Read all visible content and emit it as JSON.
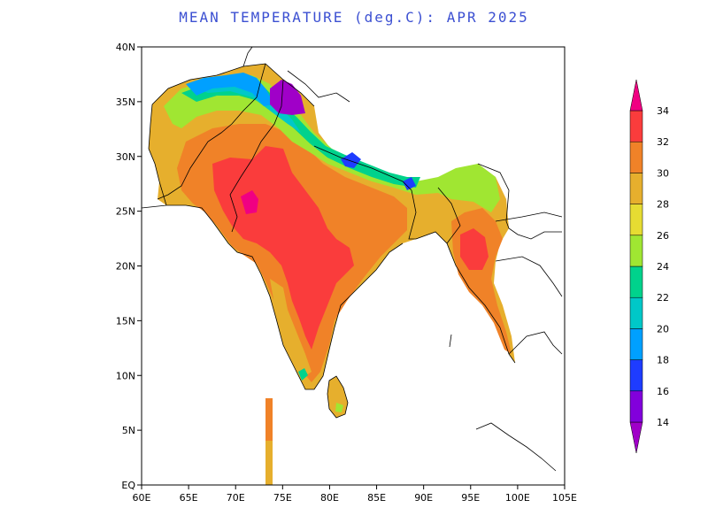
{
  "title": "MEAN TEMPERATURE (deg.C): APR 2025",
  "map": {
    "x_ticks": [
      "60E",
      "65E",
      "70E",
      "75E",
      "80E",
      "85E",
      "90E",
      "95E",
      "100E",
      "105E"
    ],
    "y_ticks": [
      "EQ",
      "5N",
      "10N",
      "15N",
      "20N",
      "25N",
      "30N",
      "35N",
      "40N"
    ],
    "lon_range": [
      60,
      105
    ],
    "lat_range": [
      0,
      40
    ]
  },
  "colorbar": {
    "labels": [
      "14",
      "16",
      "18",
      "20",
      "22",
      "24",
      "26",
      "28",
      "30",
      "32",
      "34"
    ],
    "colors": [
      "#a000c8",
      "#8200dc",
      "#1e3cff",
      "#00a0ff",
      "#00c8c8",
      "#00d28c",
      "#a0e632",
      "#e6dc32",
      "#e6af2d",
      "#f08228",
      "#fa3c3c",
      "#f00082"
    ]
  }
}
